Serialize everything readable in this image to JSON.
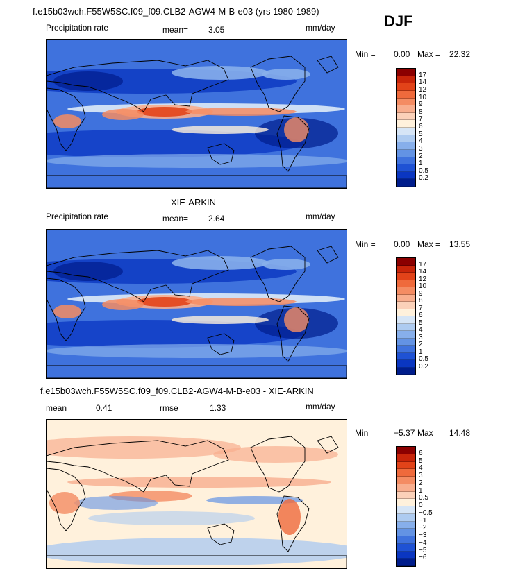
{
  "season": "DJF",
  "panels": [
    {
      "title": "f.e15b03wch.F55W5SC.f09_f09.CLB2-AGW4-M-B-e03 (yrs 1980-1989)",
      "variable": "Precipitation rate",
      "stat1_label": "mean=",
      "stat1_value": "3.05",
      "stat2_label": "",
      "stat2_value": "",
      "units": "mm/day",
      "min_label": "Min =",
      "min_value": "0.00",
      "max_label": "Max =",
      "max_value": "22.32",
      "style": "precip",
      "colorbar": {
        "colors": [
          "#8b0000",
          "#c8250a",
          "#e24319",
          "#ef6a3c",
          "#f48c63",
          "#f8ae8e",
          "#fbd1b9",
          "#fff1dc",
          "#d6e5f6",
          "#aecbf0",
          "#87afeb",
          "#6393e4",
          "#3f72dd",
          "#1f52d4",
          "#0a36c1",
          "#001d8c"
        ],
        "labels": [
          "17",
          "14",
          "12",
          "10",
          "9",
          "8",
          "7",
          "6",
          "5",
          "4",
          "3",
          "2",
          "1",
          "0.5",
          "0.2"
        ]
      }
    },
    {
      "title": "XIE-ARKIN",
      "variable": "Precipitation rate",
      "stat1_label": "mean=",
      "stat1_value": "2.64",
      "stat2_label": "",
      "stat2_value": "",
      "units": "mm/day",
      "min_label": "Min =",
      "min_value": "0.00",
      "max_label": "Max =",
      "max_value": "13.55",
      "style": "precip",
      "colorbar": {
        "colors": [
          "#8b0000",
          "#c8250a",
          "#e24319",
          "#ef6a3c",
          "#f48c63",
          "#f8ae8e",
          "#fbd1b9",
          "#fff1dc",
          "#d6e5f6",
          "#aecbf0",
          "#87afeb",
          "#6393e4",
          "#3f72dd",
          "#1f52d4",
          "#0a36c1",
          "#001d8c"
        ],
        "labels": [
          "17",
          "14",
          "12",
          "10",
          "9",
          "8",
          "7",
          "6",
          "5",
          "4",
          "3",
          "2",
          "1",
          "0.5",
          "0.2"
        ]
      }
    },
    {
      "title": "f.e15b03wch.F55W5SC.f09_f09.CLB2-AGW4-M-B-e03 - XIE-ARKIN",
      "variable": "",
      "stat1_label": "mean =",
      "stat1_value": "0.41",
      "stat2_label": "rmse =",
      "stat2_value": "1.33",
      "units": "mm/day",
      "min_label": "Min =",
      "min_value": "−5.37",
      "max_label": "Max =",
      "max_value": "14.48",
      "style": "diff",
      "colorbar": {
        "colors": [
          "#8b0000",
          "#c8250a",
          "#e24319",
          "#ef6a3c",
          "#f48c63",
          "#f8ae8e",
          "#fbd1b9",
          "#fff1dc",
          "#d6e5f6",
          "#aecbf0",
          "#87afeb",
          "#6393e4",
          "#3f72dd",
          "#1f52d4",
          "#0a36c1",
          "#001d8c"
        ],
        "labels": [
          "6",
          "5",
          "4",
          "3",
          "2",
          "1",
          "0.5",
          "0",
          "−0.5",
          "−1",
          "−2",
          "−3",
          "−4",
          "−5",
          "−6"
        ]
      }
    }
  ]
}
